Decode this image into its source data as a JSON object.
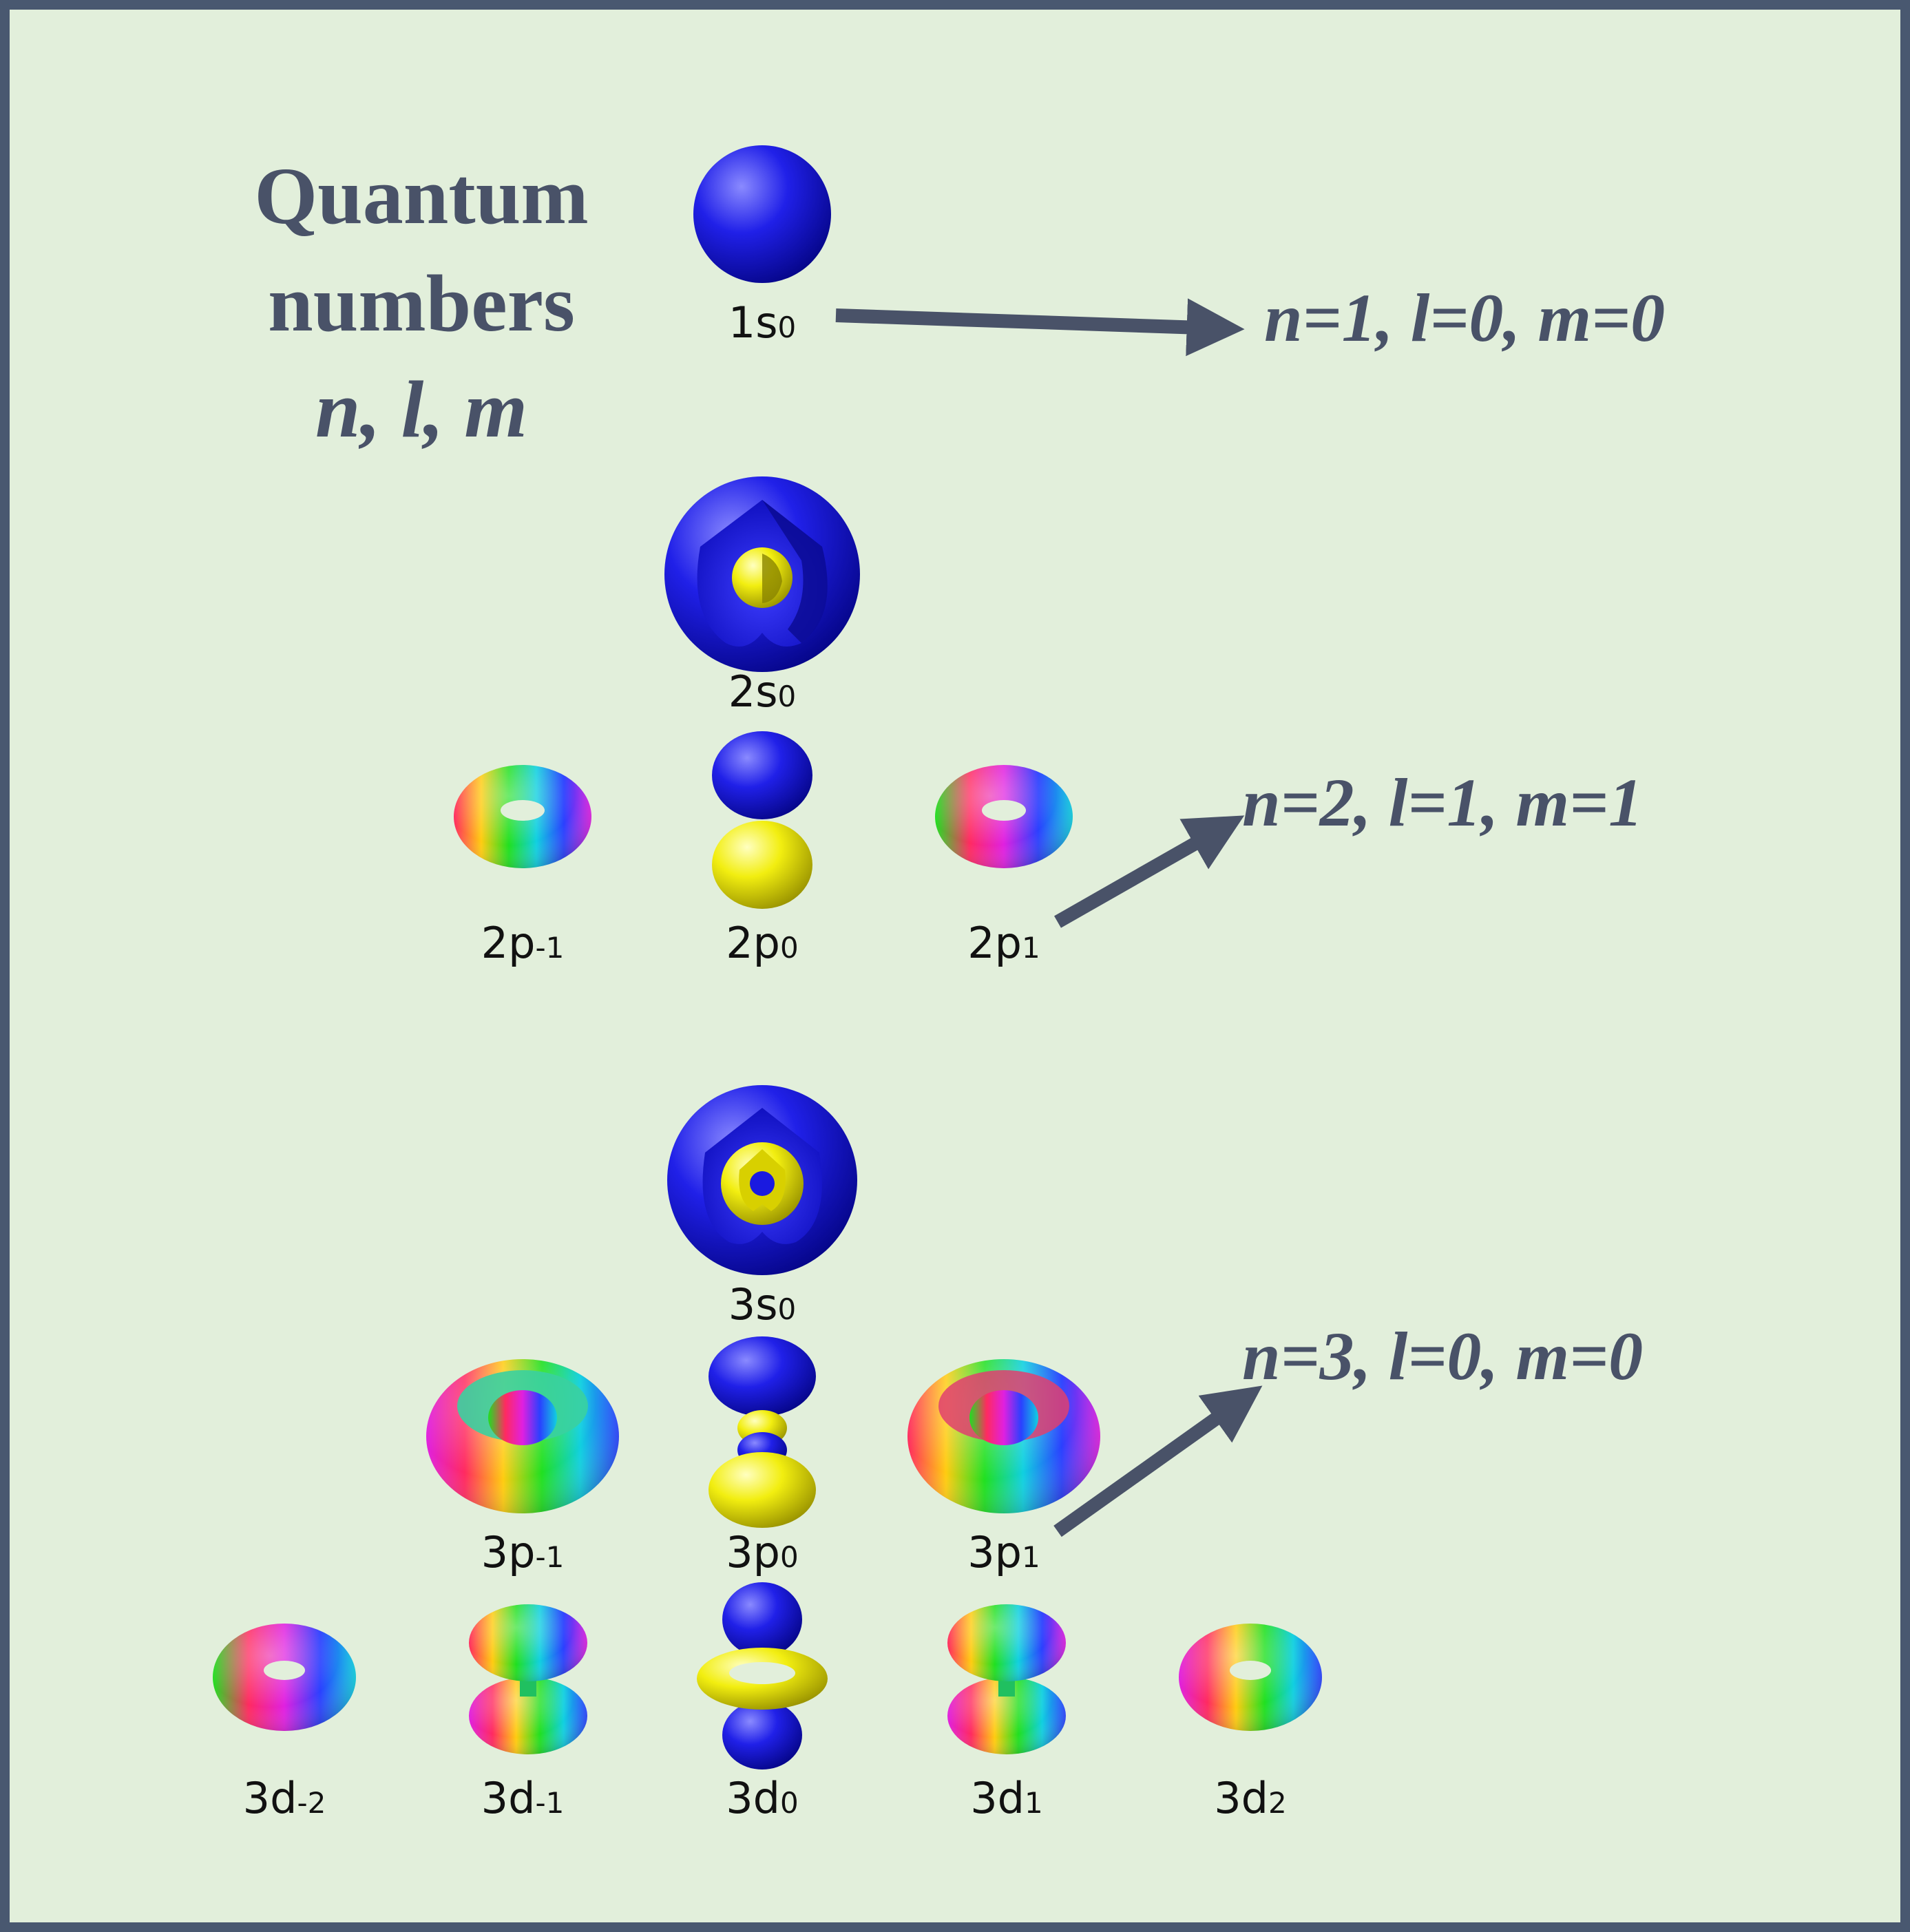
{
  "title": {
    "line1": "Quantum",
    "line2": "numbers",
    "line3": "n, l, m"
  },
  "callouts": [
    {
      "text": "n=1, l=0, m=0"
    },
    {
      "text": "n=2, l=1, m=1"
    },
    {
      "text": "n=3, l=0, m=0"
    }
  ],
  "orbitals": [
    {
      "label": "1s",
      "sub": "0"
    },
    {
      "label": "2s",
      "sub": "0"
    },
    {
      "label": "2p",
      "sub": "-1"
    },
    {
      "label": "2p",
      "sub": "0"
    },
    {
      "label": "2p",
      "sub": "1"
    },
    {
      "label": "3s",
      "sub": "0"
    },
    {
      "label": "3p",
      "sub": "-1"
    },
    {
      "label": "3p",
      "sub": "0"
    },
    {
      "label": "3p",
      "sub": "1"
    },
    {
      "label": "3d",
      "sub": "-2"
    },
    {
      "label": "3d",
      "sub": "-1"
    },
    {
      "label": "3d",
      "sub": "0"
    },
    {
      "label": "3d",
      "sub": "1"
    },
    {
      "label": "3d",
      "sub": "2"
    }
  ],
  "colors": {
    "background": "#e2efdb",
    "border": "#495870",
    "text": "#495268",
    "positive_lobe": "#1a1ae0",
    "negative_lobe": "#f2ee10"
  }
}
